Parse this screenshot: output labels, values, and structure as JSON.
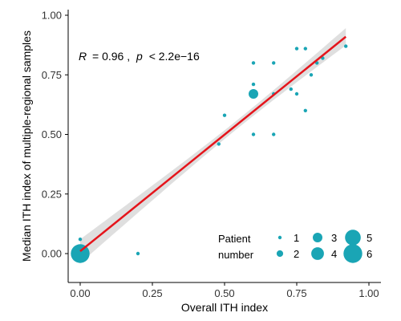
{
  "chart_data": {
    "type": "scatter",
    "xlabel": "Overall ITH index",
    "ylabel": "Median ITH index of multiple-regional samples",
    "xlim": [
      -0.03,
      1.03
    ],
    "ylim": [
      -0.06,
      1.03
    ],
    "x_ticks": [
      "0.00",
      "0.25",
      "0.50",
      "0.75",
      "1.00"
    ],
    "y_ticks": [
      "0.00",
      "0.25",
      "0.50",
      "0.75",
      "1.00"
    ],
    "x_tick_values": [
      0,
      0.25,
      0.5,
      0.75,
      1.0
    ],
    "y_tick_values": [
      0,
      0.25,
      0.5,
      0.75,
      1.0
    ],
    "annotation": {
      "r_label": "R",
      "r_value": "= 0.96 ,",
      "p_label": "p",
      "p_value": "< 2.2e−16"
    },
    "points": [
      {
        "x": 0.0,
        "y": 0.0,
        "n": 6
      },
      {
        "x": 0.0,
        "y": 0.06,
        "n": 1
      },
      {
        "x": 0.2,
        "y": 0.0,
        "n": 1
      },
      {
        "x": 0.48,
        "y": 0.46,
        "n": 1
      },
      {
        "x": 0.5,
        "y": 0.58,
        "n": 1
      },
      {
        "x": 0.6,
        "y": 0.5,
        "n": 1
      },
      {
        "x": 0.6,
        "y": 0.67,
        "n": 3
      },
      {
        "x": 0.6,
        "y": 0.71,
        "n": 1
      },
      {
        "x": 0.6,
        "y": 0.8,
        "n": 1
      },
      {
        "x": 0.67,
        "y": 0.5,
        "n": 1
      },
      {
        "x": 0.67,
        "y": 0.8,
        "n": 1
      },
      {
        "x": 0.67,
        "y": 0.67,
        "n": 1
      },
      {
        "x": 0.73,
        "y": 0.69,
        "n": 1
      },
      {
        "x": 0.75,
        "y": 0.67,
        "n": 1
      },
      {
        "x": 0.75,
        "y": 0.86,
        "n": 1
      },
      {
        "x": 0.78,
        "y": 0.6,
        "n": 1
      },
      {
        "x": 0.78,
        "y": 0.86,
        "n": 1
      },
      {
        "x": 0.8,
        "y": 0.75,
        "n": 1
      },
      {
        "x": 0.82,
        "y": 0.8,
        "n": 1
      },
      {
        "x": 0.84,
        "y": 0.82,
        "n": 1
      },
      {
        "x": 0.92,
        "y": 0.87,
        "n": 1
      }
    ],
    "fit": {
      "x0": 0.0,
      "y0": 0.01,
      "x1": 0.92,
      "y1": 0.91
    },
    "legend": {
      "title_line1": "Patient",
      "title_line2": "number",
      "sizes": [
        1,
        2,
        3,
        4,
        5,
        6
      ],
      "labels": [
        "1",
        "2",
        "3",
        "4",
        "5",
        "6"
      ],
      "position": "bottom-right"
    },
    "colors": {
      "point": "#1aa5b5",
      "fit_line": "#e5141b",
      "band": "#c9c9c9"
    },
    "grid": false
  }
}
